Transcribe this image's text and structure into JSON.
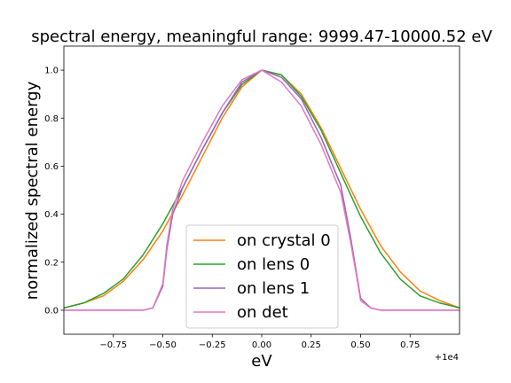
{
  "chart_data": {
    "type": "line",
    "title": "spectral energy, meaningful range: 9999.47-10000.52 eV",
    "xlabel": "eV",
    "ylabel": "normalized spectral energy",
    "x_offset_label": "+1e4",
    "xlim": [
      -1.0,
      1.0
    ],
    "ylim": [
      -0.1,
      1.1
    ],
    "xticks": [
      -0.75,
      -0.5,
      -0.25,
      0.0,
      0.25,
      0.5,
      0.75
    ],
    "xtick_labels": [
      "−0.75",
      "−0.50",
      "−0.25",
      "0.00",
      "0.25",
      "0.50",
      "0.75"
    ],
    "yticks": [
      0.0,
      0.2,
      0.4,
      0.6,
      0.8,
      1.0
    ],
    "ytick_labels": [
      "0.0",
      "0.2",
      "0.4",
      "0.6",
      "0.8",
      "1.0"
    ],
    "grid": false,
    "legend": "bottom-center",
    "series": [
      {
        "name": "on crystal 0",
        "color": "#ff7f0e",
        "x": [
          -1.0,
          -0.9,
          -0.8,
          -0.7,
          -0.6,
          -0.5,
          -0.4,
          -0.3,
          -0.2,
          -0.1,
          0.0,
          0.1,
          0.2,
          0.3,
          0.4,
          0.5,
          0.6,
          0.7,
          0.8,
          0.9,
          1.0
        ],
        "y": [
          0.01,
          0.03,
          0.06,
          0.12,
          0.21,
          0.33,
          0.48,
          0.64,
          0.8,
          0.93,
          1.0,
          0.98,
          0.9,
          0.76,
          0.59,
          0.42,
          0.27,
          0.16,
          0.08,
          0.04,
          0.01
        ]
      },
      {
        "name": "on lens 0",
        "color": "#2ca02c",
        "x": [
          -1.0,
          -0.9,
          -0.8,
          -0.7,
          -0.6,
          -0.5,
          -0.4,
          -0.3,
          -0.2,
          -0.1,
          0.0,
          0.1,
          0.2,
          0.3,
          0.4,
          0.5,
          0.6,
          0.7,
          0.8,
          0.9,
          1.0
        ],
        "y": [
          0.01,
          0.03,
          0.07,
          0.13,
          0.23,
          0.36,
          0.51,
          0.67,
          0.82,
          0.94,
          1.0,
          0.98,
          0.89,
          0.75,
          0.57,
          0.39,
          0.24,
          0.13,
          0.06,
          0.03,
          0.01
        ]
      },
      {
        "name": "on lens 1",
        "color": "#9467bd",
        "x": [
          -1.0,
          -0.6,
          -0.55,
          -0.5,
          -0.48,
          -0.45,
          -0.4,
          -0.3,
          -0.2,
          -0.1,
          0.0,
          0.1,
          0.2,
          0.3,
          0.4,
          0.45,
          0.48,
          0.5,
          0.55,
          0.6,
          1.0
        ],
        "y": [
          0.0,
          0.0,
          0.01,
          0.1,
          0.25,
          0.4,
          0.51,
          0.67,
          0.82,
          0.95,
          1.0,
          0.97,
          0.88,
          0.72,
          0.52,
          0.3,
          0.15,
          0.05,
          0.01,
          0.0,
          0.0
        ]
      },
      {
        "name": "on det",
        "color": "#e377c2",
        "x": [
          -1.0,
          -0.6,
          -0.55,
          -0.5,
          -0.48,
          -0.45,
          -0.4,
          -0.3,
          -0.2,
          -0.1,
          0.0,
          0.1,
          0.2,
          0.3,
          0.4,
          0.45,
          0.48,
          0.5,
          0.55,
          0.6,
          1.0
        ],
        "y": [
          0.0,
          0.0,
          0.01,
          0.11,
          0.27,
          0.42,
          0.54,
          0.7,
          0.85,
          0.96,
          1.0,
          0.95,
          0.85,
          0.69,
          0.49,
          0.28,
          0.14,
          0.04,
          0.01,
          0.0,
          0.0
        ]
      }
    ]
  }
}
